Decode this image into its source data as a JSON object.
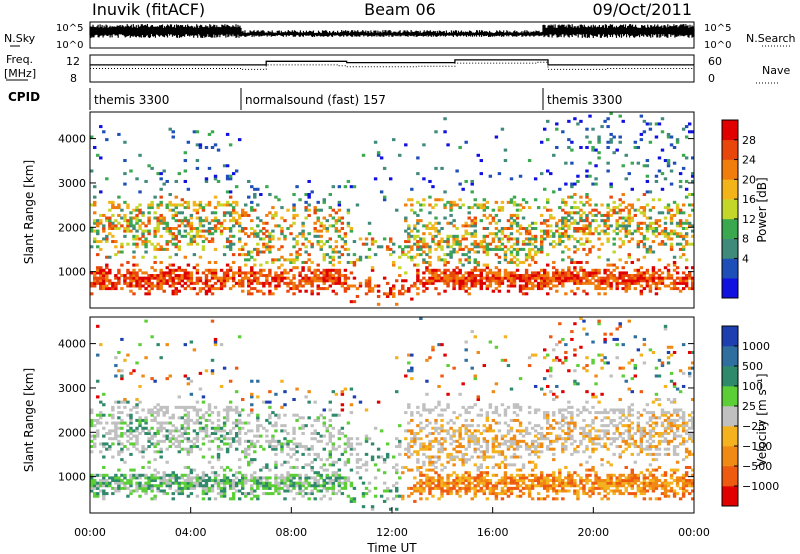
{
  "header": {
    "station": "Inuvik (fitACF)",
    "beam": "Beam 06",
    "date": "09/Oct/2011"
  },
  "chart_data": [
    {
      "type": "line",
      "panel": "noise",
      "left_label": "N.Sky",
      "right_label": "N.Search",
      "left_ticks": [
        "10^5",
        "10^0"
      ],
      "right_ticks": [
        "10^5",
        "10^0"
      ],
      "scale": "log"
    },
    {
      "type": "line",
      "panel": "frequency",
      "left_label_top": "Freq.",
      "left_label_bottom": "[MHz]",
      "left_ticks": [
        "12",
        "8"
      ],
      "right_label": "Nave",
      "right_ticks": [
        "60",
        "0"
      ],
      "series": [
        {
          "name": "Freq.",
          "x": [
            0,
            6,
            7,
            9.9,
            10.2,
            13,
            14.5,
            17.8,
            18.2,
            20.5,
            24
          ],
          "values": [
            10.8,
            10.8,
            11.6,
            11.6,
            11.3,
            11.3,
            11.9,
            11.9,
            10.8,
            10.8,
            10.8
          ]
        },
        {
          "name": "Nave",
          "x": [
            0,
            6,
            7,
            9.9,
            10.2,
            13,
            14.5,
            17.8,
            18.2,
            20.5,
            24
          ],
          "values": [
            30,
            28,
            38,
            36,
            34,
            35,
            42,
            44,
            28,
            30,
            30
          ]
        }
      ]
    },
    {
      "type": "table",
      "panel": "cpid",
      "label": "CPID",
      "segments": [
        {
          "start_hour": 0,
          "end_hour": 6,
          "text": "themis 3300"
        },
        {
          "start_hour": 6,
          "end_hour": 18,
          "text": "normalsound (fast) 157"
        },
        {
          "start_hour": 18,
          "end_hour": 24,
          "text": "themis 3300"
        }
      ]
    },
    {
      "type": "heatmap",
      "panel": "power",
      "ylabel": "Slant Range [km]",
      "xlim": [
        0,
        24
      ],
      "ylim": [
        180,
        4600
      ],
      "yticks": [
        1000,
        2000,
        3000,
        4000
      ],
      "colorbar": {
        "label": "Power [dB]",
        "ticks": [
          "28",
          "24",
          "20",
          "16",
          "12",
          "8",
          "4"
        ],
        "range": [
          0,
          32
        ]
      },
      "colors": [
        "#1010e0",
        "#1e4fb8",
        "#3f8a7a",
        "#39a84e",
        "#c4d62a",
        "#f3b41a",
        "#f07d0c",
        "#e8460a",
        "#e00000"
      ]
    },
    {
      "type": "heatmap",
      "panel": "velocity",
      "ylabel": "Slant Range [km]",
      "xlabel": "Time UT",
      "xlim": [
        0,
        24
      ],
      "ylim": [
        180,
        4600
      ],
      "yticks": [
        1000,
        2000,
        3000,
        4000
      ],
      "xticks": [
        "00:00",
        "04:00",
        "08:00",
        "12:00",
        "16:00",
        "20:00",
        "00:00"
      ],
      "colorbar": {
        "label": "Velocity [m s⁻¹]",
        "ticks": [
          "1000",
          "500",
          "100",
          "25",
          "−25",
          "−100",
          "−500",
          "−1000"
        ]
      },
      "colors": [
        "#1d3fb0",
        "#2f6fa0",
        "#2e8a6a",
        "#5ccf36",
        "#c0c0c0",
        "#f3b21e",
        "#f08a14",
        "#ee5a10",
        "#e10000"
      ]
    }
  ]
}
